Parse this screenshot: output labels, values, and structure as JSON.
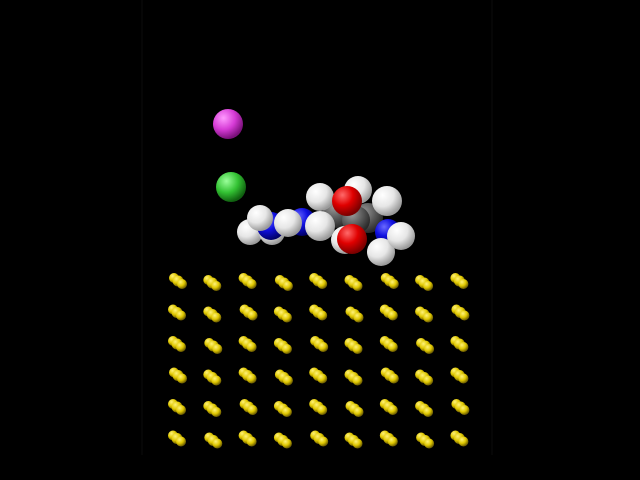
{
  "scene": {
    "background": "#000000",
    "atom_colors": {
      "magenta_ion": "#d63bd6",
      "green_ion": "#33c233",
      "hydrogen": "#e8e8e8",
      "nitrogen": "#1010e0",
      "oxygen": "#e00000",
      "carbon": "#5a5a5a",
      "gold": "#e0c800"
    },
    "surface": {
      "rows": 6,
      "columns": 9
    }
  }
}
